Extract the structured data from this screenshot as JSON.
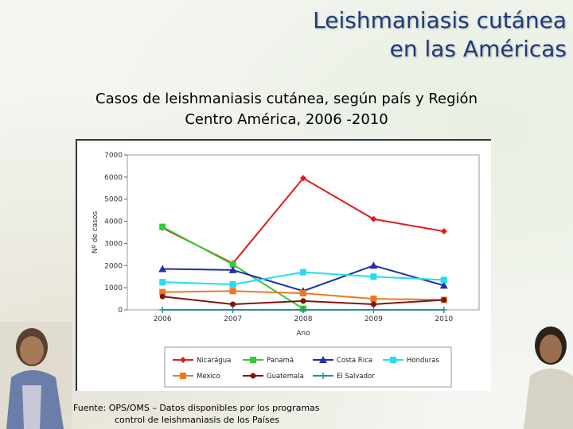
{
  "slide": {
    "title_line1": "Leishmaniasis cutánea",
    "title_line2": "en las Américas",
    "subtitle_line1": "Casos de leishmaniasis cutánea, según país y Región",
    "subtitle_line2": "Centro América, 2006 -2010",
    "source_line1": "Fuente: OPS/OMS – Datos disponibles por los programas",
    "source_line2": "control de leishmaniasis de los Países"
  },
  "chart_data": {
    "type": "line",
    "title": "",
    "xlabel": "Ano",
    "ylabel": "Nº de casos",
    "categories": [
      "2006",
      "2007",
      "2008",
      "2009",
      "2010"
    ],
    "yticks": [
      "0",
      "1000",
      "2000",
      "3000",
      "4000",
      "5000",
      "6000",
      "7000"
    ],
    "ylim": [
      0,
      7000
    ],
    "grid": false,
    "legend_position": "bottom",
    "series": [
      {
        "name": "Nicarágua",
        "color": "#e31a1c",
        "marker": "diamond",
        "values": [
          3700,
          2100,
          5950,
          4100,
          3550
        ]
      },
      {
        "name": "Panamá",
        "color": "#33cc33",
        "marker": "square",
        "values": [
          3750,
          2050,
          50,
          null,
          null
        ]
      },
      {
        "name": "Costa Rica",
        "color": "#1f2fa8",
        "marker": "triangle",
        "values": [
          1850,
          1800,
          850,
          2000,
          1100
        ]
      },
      {
        "name": "Honduras",
        "color": "#22ddee",
        "marker": "square",
        "values": [
          1250,
          1150,
          1700,
          1500,
          1350
        ]
      },
      {
        "name": "Mexico",
        "color": "#ee7722",
        "marker": "square",
        "values": [
          800,
          850,
          750,
          500,
          450
        ]
      },
      {
        "name": "Guatemala",
        "color": "#7a1515",
        "marker": "circle",
        "values": [
          600,
          250,
          400,
          250,
          450
        ]
      },
      {
        "name": "El Salvador",
        "color": "#2a8aa0",
        "marker": "plus",
        "values": [
          0,
          0,
          0,
          0,
          0
        ]
      }
    ]
  }
}
